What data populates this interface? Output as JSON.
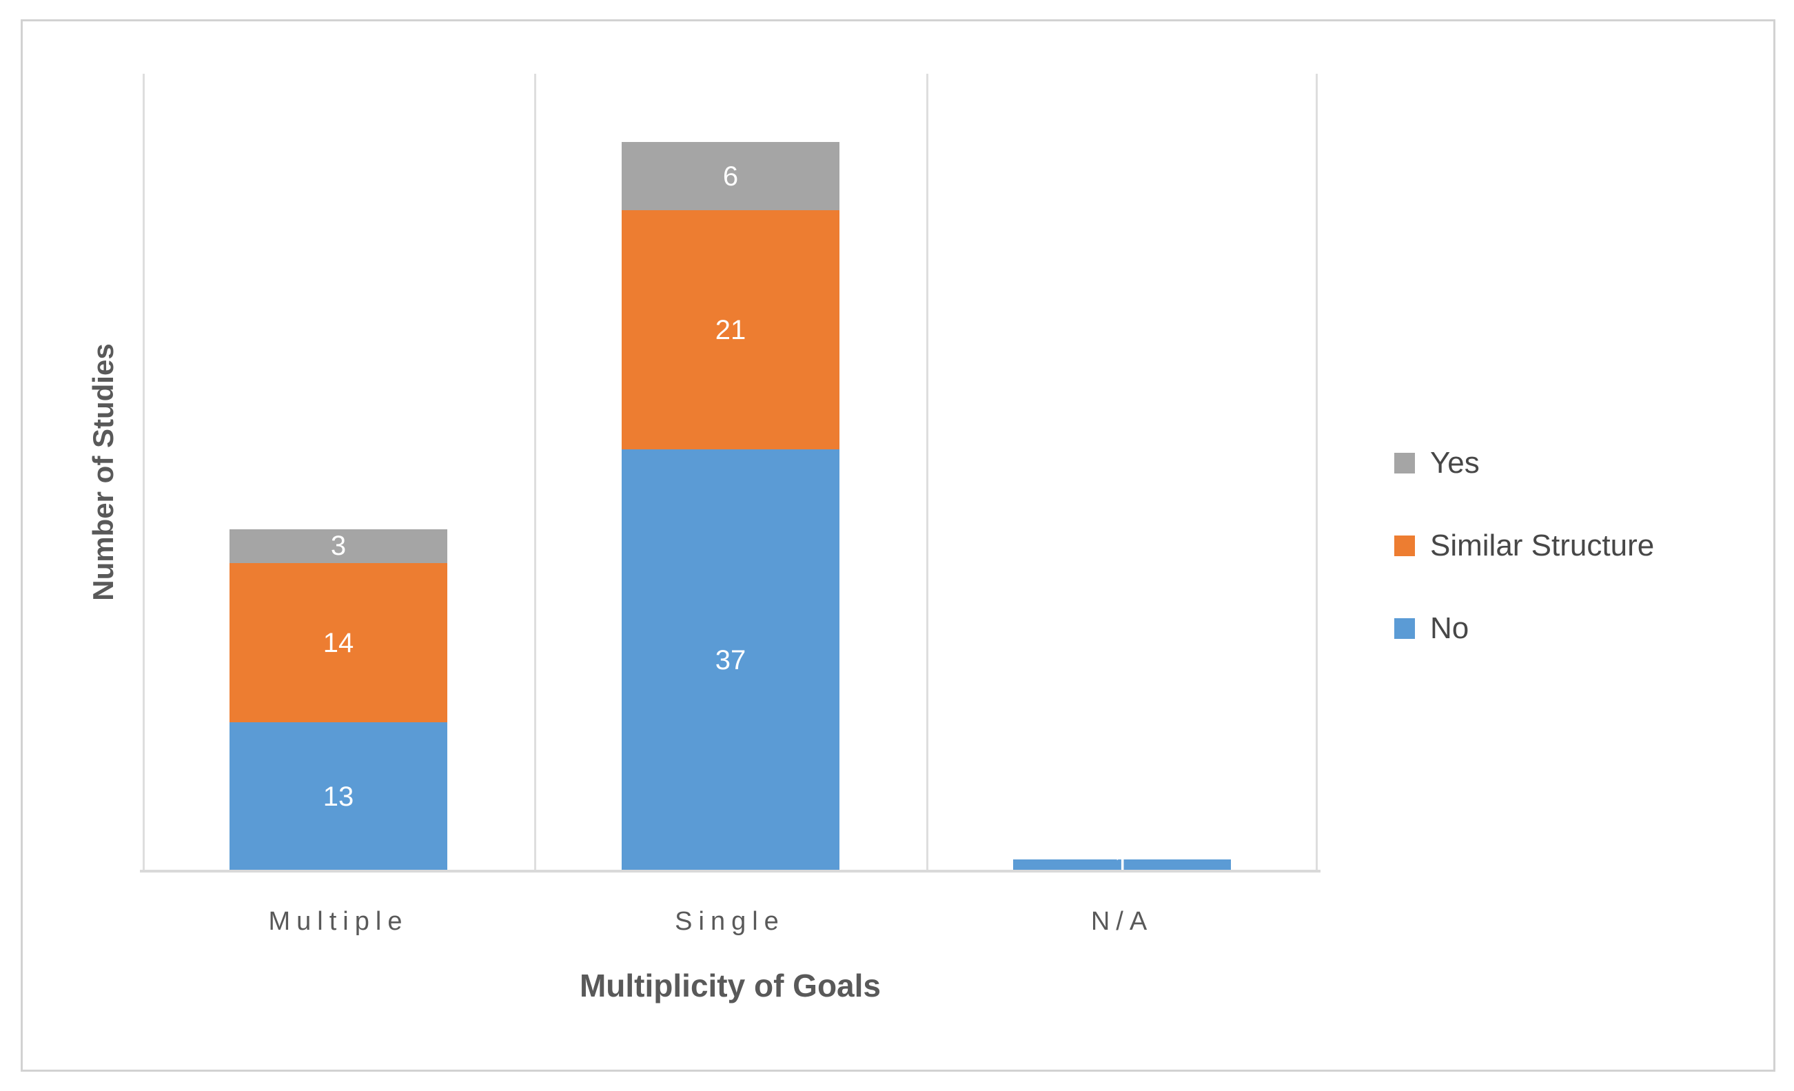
{
  "figure": {
    "background_color": "#ffffff",
    "border_color": "#d2d2d2",
    "axis_line_color": "#d9d9d9",
    "separator_line_color": "#dedede",
    "text_color": "#595959",
    "data_label_color": "#ffffff"
  },
  "chart_data": {
    "type": "bar",
    "stacked": true,
    "title": "",
    "xlabel": "Multiplicity of Goals",
    "ylabel": "Number of Studies",
    "categories": [
      "Multiple",
      "Single",
      "N/A"
    ],
    "series": [
      {
        "name": "No",
        "color": "#5b9bd5",
        "values": [
          13,
          37,
          1
        ]
      },
      {
        "name": "Similar Structure",
        "color": "#ed7d31",
        "values": [
          14,
          21,
          0
        ]
      },
      {
        "name": "Yes",
        "color": "#a5a5a5",
        "values": [
          3,
          6,
          0
        ]
      }
    ],
    "totals_by_category": [
      30,
      64,
      1
    ],
    "ylim": [
      0,
      70
    ],
    "y_tick_labels_shown": false,
    "gridlines": "vertical category separators only",
    "data_labels": "value centered inside each segment, white",
    "legend_position": "right"
  },
  "legend": {
    "items": [
      {
        "label": "Yes",
        "color": "#a5a5a5"
      },
      {
        "label": "Similar Structure",
        "color": "#ed7d31"
      },
      {
        "label": "No",
        "color": "#5b9bd5"
      }
    ]
  }
}
